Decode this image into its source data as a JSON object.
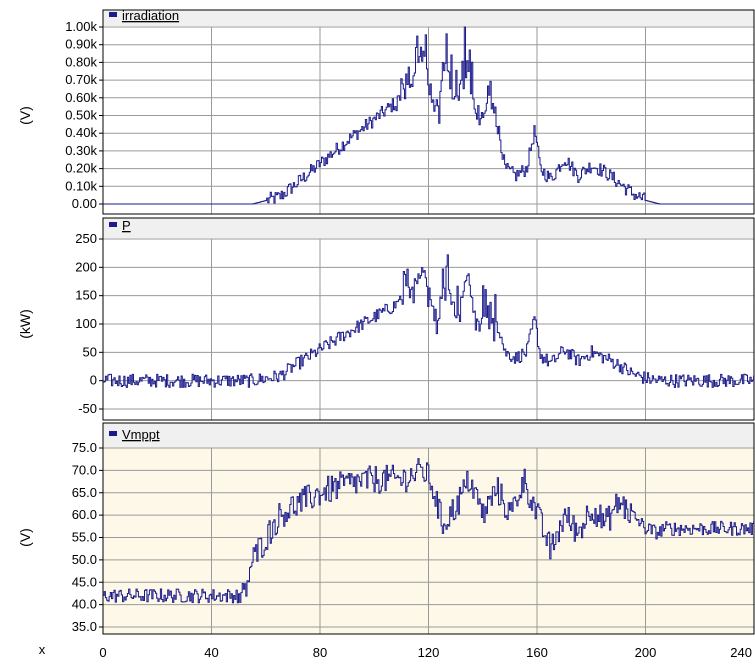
{
  "chart_data": [
    {
      "type": "line",
      "series": [
        {
          "name": "irradiation",
          "color": "#1b1b8c",
          "x": [
            0,
            55,
            65,
            70,
            90,
            110,
            114,
            118,
            122,
            126,
            130,
            134,
            138,
            142,
            146,
            148,
            152,
            156,
            159,
            161,
            165,
            170,
            175,
            180,
            185,
            190,
            195,
            200,
            205,
            240
          ],
          "y": [
            0.0,
            0.0,
            0.04,
            0.1,
            0.36,
            0.6,
            0.72,
            0.9,
            0.5,
            0.8,
            0.55,
            0.85,
            0.45,
            0.6,
            0.4,
            0.2,
            0.16,
            0.2,
            0.42,
            0.2,
            0.14,
            0.26,
            0.16,
            0.22,
            0.18,
            0.12,
            0.06,
            0.02,
            0.0,
            0.0
          ],
          "noisy": true
        }
      ],
      "ylabel": "(V)",
      "ylim": [
        0,
        1.0
      ],
      "yticks": [
        "0.00",
        "0.10k",
        "0.20k",
        "0.30k",
        "0.40k",
        "0.50k",
        "0.60k",
        "0.70k",
        "0.80k",
        "0.90k",
        "1.00k"
      ],
      "xlim": [
        0,
        240
      ],
      "grid": true,
      "background": "#ffffff"
    },
    {
      "type": "line",
      "series": [
        {
          "name": "P",
          "color": "#1b1b8c",
          "x": [
            0,
            55,
            65,
            70,
            90,
            110,
            114,
            118,
            122,
            126,
            130,
            134,
            138,
            142,
            146,
            148,
            152,
            156,
            159,
            161,
            165,
            170,
            175,
            180,
            185,
            190,
            195,
            200,
            205,
            240
          ],
          "y": [
            0,
            0,
            8,
            25,
            85,
            140,
            165,
            200,
            110,
            180,
            120,
            190,
            100,
            130,
            90,
            50,
            40,
            50,
            110,
            45,
            30,
            55,
            35,
            50,
            40,
            28,
            12,
            4,
            0,
            0
          ],
          "noisy": true
        }
      ],
      "ylabel": "(kW)",
      "ylim": [
        -50,
        250
      ],
      "yticks": [
        "-50",
        "0",
        "50",
        "100",
        "150",
        "200",
        "250"
      ],
      "xlim": [
        0,
        240
      ],
      "grid": true,
      "background": "#ffffff"
    },
    {
      "type": "line",
      "series": [
        {
          "name": "Vmppt",
          "color": "#1b1b8c",
          "x": [
            0,
            52,
            53,
            55,
            60,
            65,
            70,
            80,
            90,
            100,
            110,
            118,
            121,
            125,
            130,
            135,
            140,
            145,
            150,
            155,
            160,
            165,
            170,
            175,
            180,
            185,
            190,
            195,
            200,
            205,
            206,
            240
          ],
          "y": [
            42,
            42,
            45,
            50,
            55,
            60,
            62,
            65,
            67,
            68,
            68,
            70,
            67,
            58,
            62,
            68,
            60,
            66,
            60,
            68,
            60,
            52,
            60,
            56,
            62,
            58,
            63,
            60,
            57,
            56,
            57,
            57
          ],
          "noisy": true
        }
      ],
      "ylabel": "(V)",
      "ylim": [
        35,
        75
      ],
      "yticks": [
        "35.0",
        "40.0",
        "45.0",
        "50.0",
        "55.0",
        "60.0",
        "65.0",
        "70.0",
        "75.0"
      ],
      "xlim": [
        0,
        240
      ],
      "grid": true,
      "background": "#fdf8e8"
    }
  ],
  "x_axis": {
    "label": "x",
    "ticks": [
      "0",
      "40",
      "80",
      "120",
      "160",
      "200",
      "240"
    ]
  }
}
